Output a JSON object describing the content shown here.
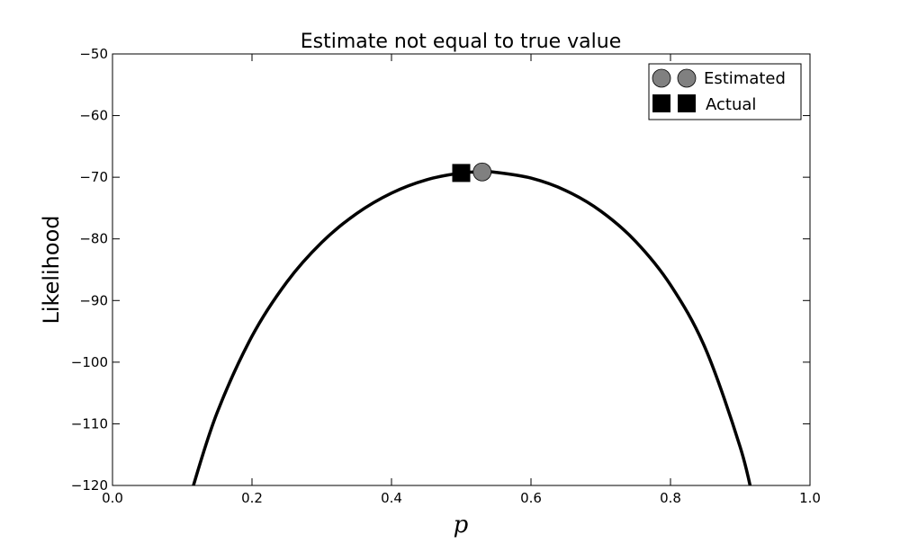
{
  "chart_data": {
    "type": "line",
    "title": "Estimate not equal to true value",
    "xlabel": "p",
    "ylabel": "Likelihood",
    "xlim": [
      0.0,
      1.0
    ],
    "ylim": [
      -120,
      -50
    ],
    "x_ticks": [
      "0.0",
      "0.2",
      "0.4",
      "0.6",
      "0.8",
      "1.0"
    ],
    "y_ticks": [
      "−50",
      "−60",
      "−70",
      "−80",
      "−90",
      "−100",
      "−110",
      "−120"
    ],
    "x_tick_values": [
      0,
      0.2,
      0.4,
      0.6,
      0.8,
      1.0
    ],
    "y_tick_values": [
      -50,
      -60,
      -70,
      -80,
      -90,
      -100,
      -110,
      -120
    ],
    "grid": false,
    "legend_position": "top-right",
    "curve": {
      "color": "#000000",
      "x": [
        0.1,
        0.115,
        0.15,
        0.2,
        0.25,
        0.3,
        0.35,
        0.4,
        0.45,
        0.5,
        0.53,
        0.55,
        0.6,
        0.65,
        0.7,
        0.75,
        0.8,
        0.85,
        0.9,
        0.92
      ],
      "y": [
        -126.99,
        -120.4,
        -108.19,
        -95.79,
        -86.99,
        -80.57,
        -75.89,
        -72.57,
        -70.42,
        -69.31,
        -69.14,
        -69.21,
        -70.14,
        -72.17,
        -75.49,
        -80.41,
        -87.47,
        -97.77,
        -113.8,
        -123.13
      ]
    },
    "series": [
      {
        "name": "Estimated",
        "marker": "circle",
        "color": "#808080",
        "x": [
          0.53
        ],
        "y": [
          -69.14
        ]
      },
      {
        "name": "Actual",
        "marker": "square",
        "color": "#000000",
        "x": [
          0.5
        ],
        "y": [
          -69.31
        ]
      }
    ]
  }
}
